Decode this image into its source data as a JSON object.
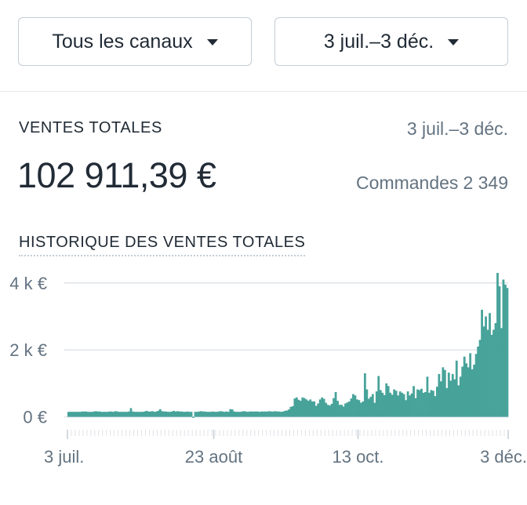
{
  "filters": {
    "channel_label": "Tous les canaux",
    "date_label": "3 juil.–3 déc."
  },
  "summary": {
    "title": "VENTES TOTALES",
    "date_range": "3 juil.–3 déc.",
    "total": "102 911,39 €",
    "orders_label": "Commandes",
    "orders_value": "2 349"
  },
  "chart_title": "HISTORIQUE DES VENTES TOTALES",
  "colors": {
    "bar": "#47a39a",
    "grid": "#dfe3e8",
    "axis_text": "#637381"
  },
  "chart_data": {
    "type": "bar",
    "title": "HISTORIQUE DES VENTES TOTALES",
    "xlabel": "",
    "ylabel": "",
    "x_tick_labels": [
      "3 juil.",
      "23 août",
      "13 oct.",
      "3 déc."
    ],
    "y_tick_labels": [
      "0 €",
      "2 k €",
      "4 k €"
    ],
    "y_ticks": [
      0,
      2000,
      4000
    ],
    "ylim": [
      -150,
      4300
    ],
    "grid": true,
    "values": [
      150,
      150,
      150,
      150,
      150,
      150,
      150,
      160,
      160,
      160,
      150,
      150,
      150,
      160,
      170,
      160,
      160,
      150,
      150,
      150,
      150,
      160,
      160,
      150,
      170,
      160,
      150,
      150,
      150,
      150,
      150,
      160,
      260,
      160,
      150,
      150,
      150,
      150,
      150,
      160,
      180,
      160,
      160,
      170,
      150,
      160,
      180,
      230,
      170,
      160,
      160,
      150,
      150,
      160,
      180,
      160,
      170,
      160,
      160,
      150,
      150,
      160,
      150,
      150,
      -30,
      150,
      150,
      160,
      170,
      160,
      160,
      150,
      150,
      150,
      160,
      150,
      150,
      160,
      170,
      160,
      150,
      160,
      150,
      230,
      220,
      160,
      150,
      150,
      150,
      160,
      170,
      160,
      150,
      160,
      160,
      160,
      160,
      160,
      150,
      160,
      160,
      160,
      160,
      170,
      160,
      160,
      170,
      160,
      160,
      150,
      160,
      180,
      190,
      220,
      300,
      320,
      550,
      580,
      510,
      480,
      580,
      560,
      520,
      480,
      520,
      460,
      460,
      330,
      400,
      520,
      580,
      540,
      420,
      360,
      340,
      390,
      560,
      740,
      480,
      360,
      360,
      310,
      400,
      430,
      460,
      550,
      680,
      640,
      520,
      500,
      420,
      460,
      1300,
      820,
      540,
      600,
      680,
      420,
      760,
      1220,
      800,
      720,
      650,
      1000,
      920,
      720,
      660,
      820,
      780,
      640,
      760,
      720,
      680,
      500,
      760,
      640,
      700,
      920,
      560,
      820,
      800,
      840,
      720,
      740,
      1200,
      720,
      800,
      780,
      620,
      900,
      1280,
      1060,
      1480,
      1400,
      860,
      1320,
      1080,
      1280,
      1120,
      1680,
      940,
      1200,
      1500,
      1800,
      1600,
      1480,
      1900,
      1420,
      1560,
      1880,
      2100,
      2300,
      3200,
      2700,
      3000,
      2600,
      3100,
      2450,
      2600,
      2800,
      4300,
      3900,
      2650,
      4100,
      3950,
      3850
    ]
  }
}
